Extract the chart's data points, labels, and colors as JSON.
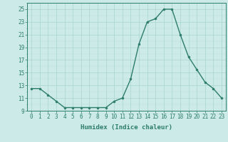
{
  "x": [
    0,
    1,
    2,
    3,
    4,
    5,
    6,
    7,
    8,
    9,
    10,
    11,
    12,
    13,
    14,
    15,
    16,
    17,
    18,
    19,
    20,
    21,
    22,
    23
  ],
  "y": [
    12.5,
    12.5,
    11.5,
    10.5,
    9.5,
    9.5,
    9.5,
    9.5,
    9.5,
    9.5,
    10.5,
    11.0,
    14.0,
    19.5,
    23.0,
    23.5,
    25.0,
    25.0,
    21.0,
    17.5,
    15.5,
    13.5,
    12.5,
    11.0
  ],
  "line_color": "#2d7d6e",
  "marker_color": "#2d7d6e",
  "bg_color": "#cceae8",
  "grid_color_major": "#aad4d0",
  "grid_color_minor": "#bde0dc",
  "xlabel": "Humidex (Indice chaleur)",
  "ylim": [
    9,
    26
  ],
  "xlim": [
    -0.5,
    23.5
  ],
  "yticks": [
    9,
    11,
    13,
    15,
    17,
    19,
    21,
    23,
    25
  ],
  "xticks": [
    0,
    1,
    2,
    3,
    4,
    5,
    6,
    7,
    8,
    9,
    10,
    11,
    12,
    13,
    14,
    15,
    16,
    17,
    18,
    19,
    20,
    21,
    22,
    23
  ],
  "font_color": "#2d7d6e",
  "figsize": [
    3.2,
    2.0
  ],
  "dpi": 100
}
